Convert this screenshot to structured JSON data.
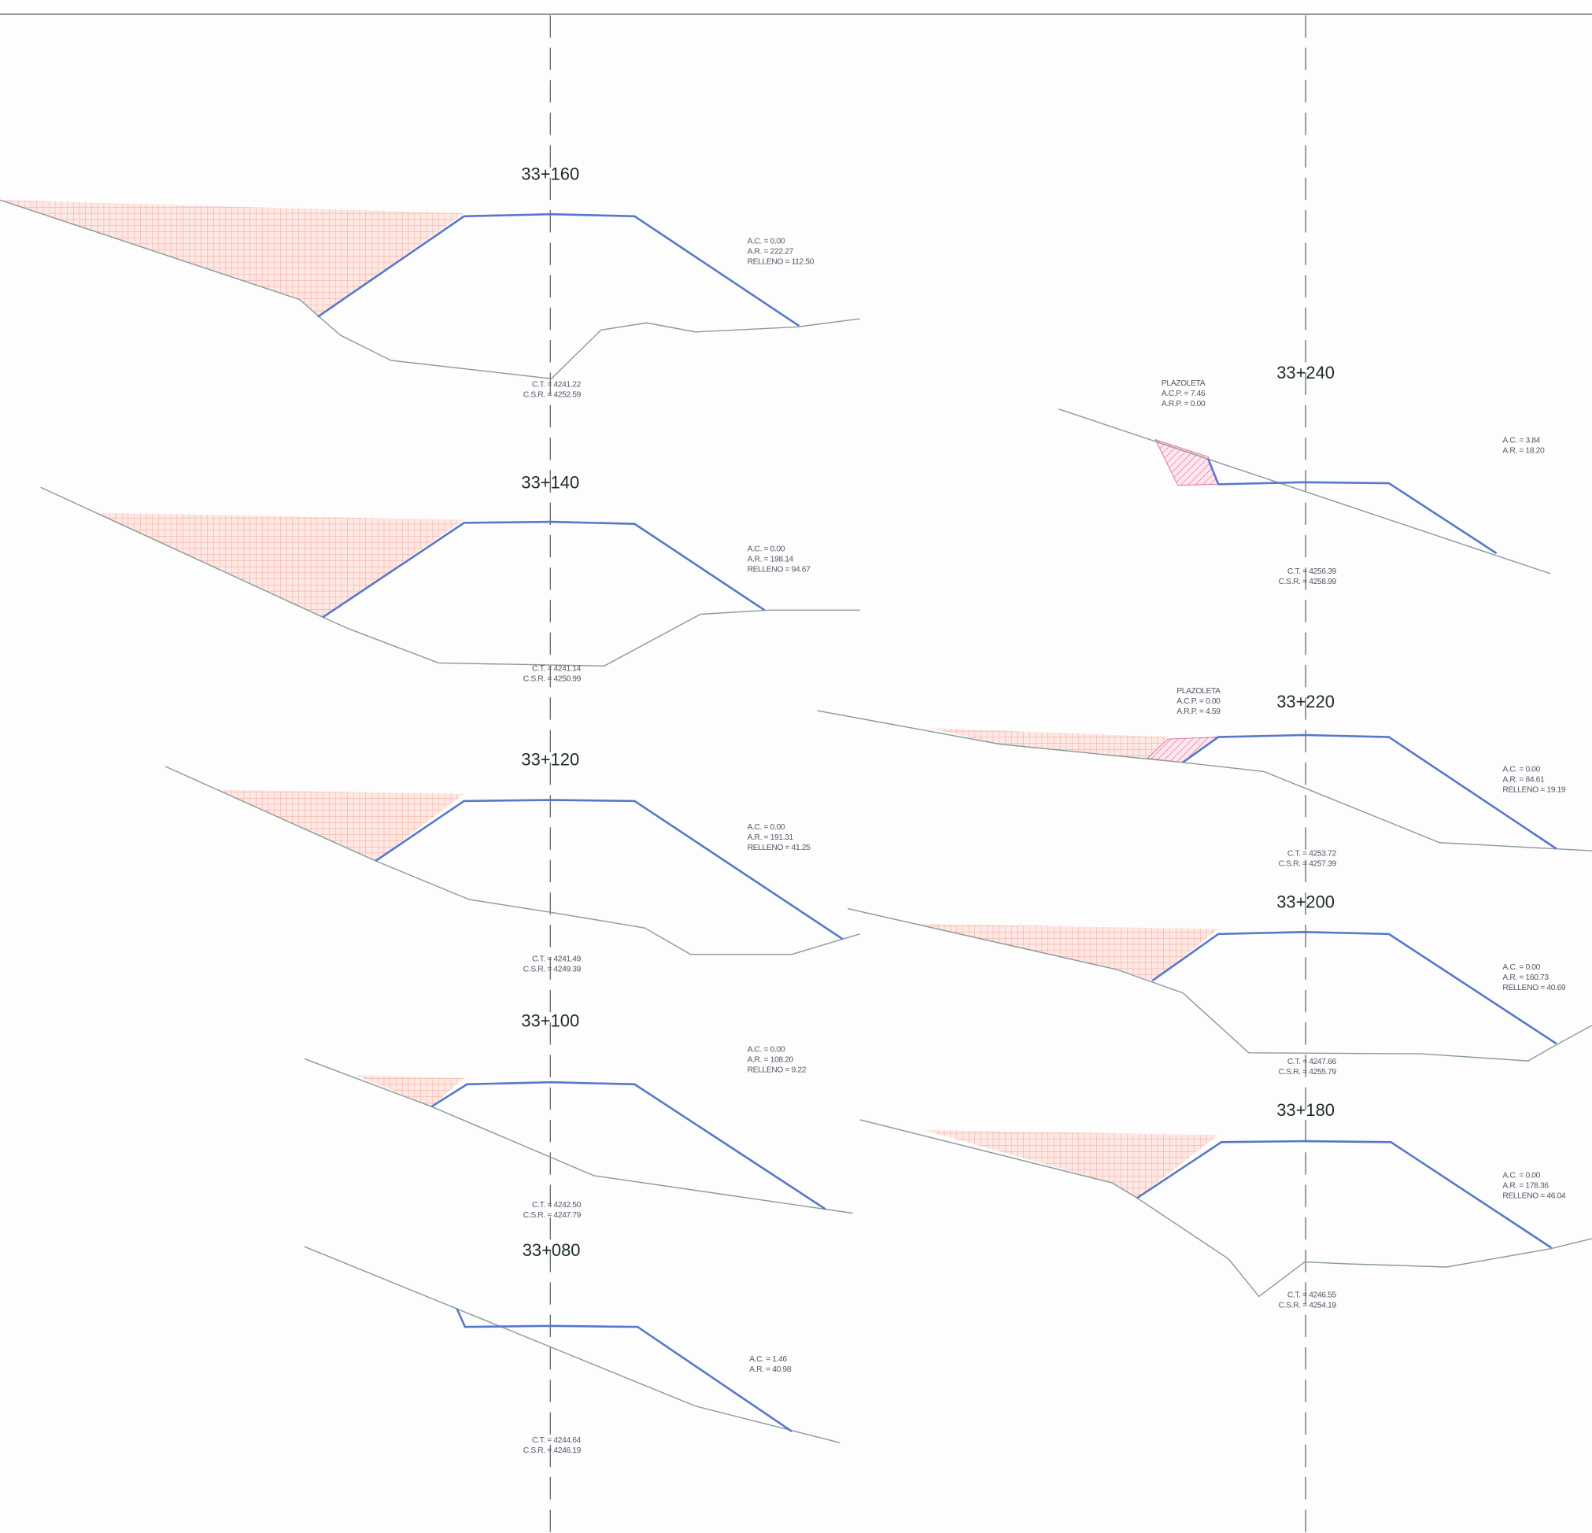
{
  "sections": [
    {
      "station": "33+160",
      "areas": [
        "A.C. = 0.00",
        "A.R. = 222.27",
        "RELLENO = 112.50"
      ],
      "levels": [
        "C.T. = 4241.22",
        "C.S.R. = 4252.59"
      ]
    },
    {
      "station": "33+140",
      "areas": [
        "A.C. = 0.00",
        "A.R. = 198.14",
        "RELLENO = 94.67"
      ],
      "levels": [
        "C.T. = 4241.14",
        "C.S.R. = 4250.99"
      ]
    },
    {
      "station": "33+120",
      "areas": [
        "A.C. = 0.00",
        "A.R. = 191.31",
        "RELLENO = 41.25"
      ],
      "levels": [
        "C.T. = 4241.49",
        "C.S.R. = 4249.39"
      ]
    },
    {
      "station": "33+100",
      "areas": [
        "A.C. = 0.00",
        "A.R. = 108.20",
        "RELLENO = 9.22"
      ],
      "levels": [
        "C.T. = 4242.50",
        "C.S.R. = 4247.79"
      ]
    },
    {
      "station": "33+080",
      "areas": [
        "A.C. = 1.46",
        "A.R. = 40.98"
      ],
      "levels": [
        "C.T. = 4244.64",
        "C.S.R. = 4246.19"
      ]
    },
    {
      "station": "33+240",
      "plazoleta": [
        "PLAZOLETA",
        "A.C.P. = 7.46",
        "A.R.P. = 0.00"
      ],
      "areas": [
        "A.C. = 3.84",
        "A.R. = 18.20"
      ],
      "levels": [
        "C.T. = 4256.39",
        "C.S.R. = 4258.99"
      ]
    },
    {
      "station": "33+220",
      "plazoleta": [
        "PLAZOLETA",
        "A.C.P. = 0.00",
        "A.R.P. = 4.59"
      ],
      "areas": [
        "A.C. = 0.00",
        "A.R. = 84.61",
        "RELLENO = 19.19"
      ],
      "levels": [
        "C.T. = 4253.72",
        "C.S.R. = 4257.39"
      ]
    },
    {
      "station": "33+200",
      "areas": [
        "A.C. = 0.00",
        "A.R. = 160.73",
        "RELLENO = 40.69"
      ],
      "levels": [
        "C.T. = 4247.66",
        "C.S.R. = 4255.79"
      ]
    },
    {
      "station": "33+180",
      "areas": [
        "A.C. = 0.00",
        "A.R. = 178.36",
        "RELLENO = 46.04"
      ],
      "levels": [
        "C.T. = 4246.55",
        "C.S.R. = 4254.19"
      ]
    }
  ]
}
